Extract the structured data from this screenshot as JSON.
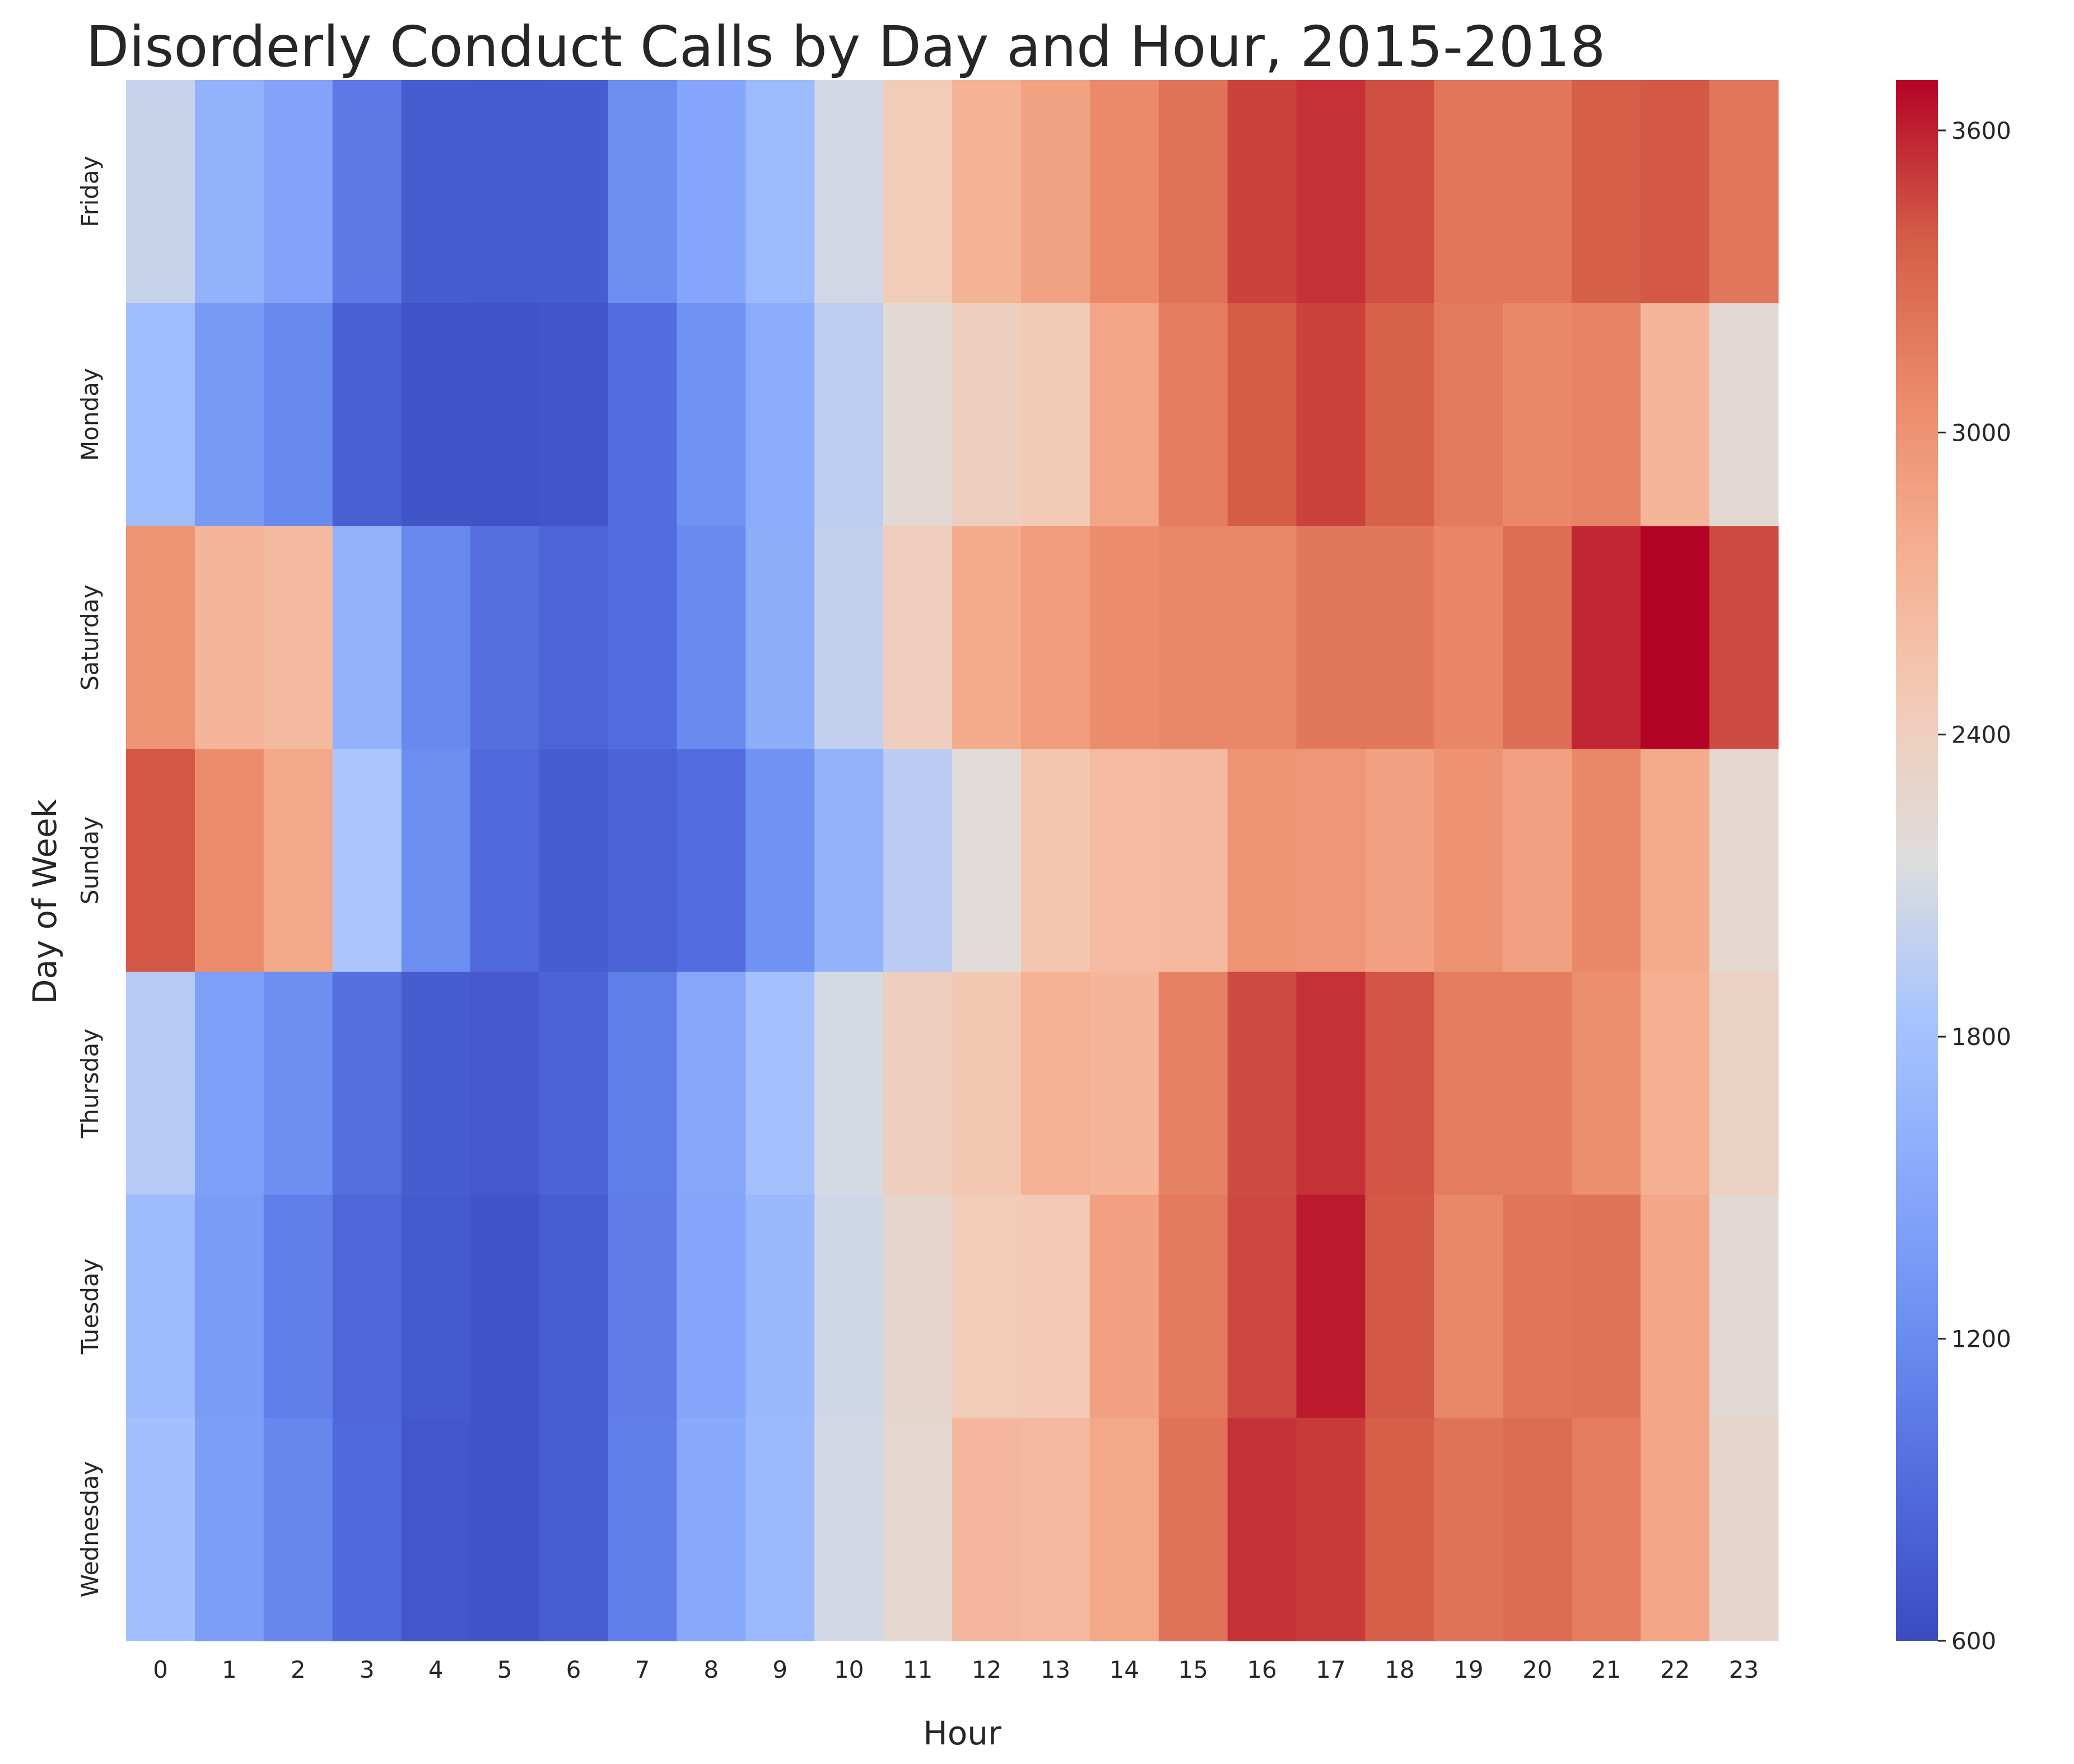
{
  "chart_data": {
    "type": "heatmap",
    "title": "Disorderly Conduct Calls by Day and Hour, 2015-2018",
    "xlabel": "Hour",
    "ylabel": "Day of Week",
    "x": [
      0,
      1,
      2,
      3,
      4,
      5,
      6,
      7,
      8,
      9,
      10,
      11,
      12,
      13,
      14,
      15,
      16,
      17,
      18,
      19,
      20,
      21,
      22,
      23
    ],
    "y": [
      "Friday",
      "Monday",
      "Saturday",
      "Sunday",
      "Thursday",
      "Tuesday",
      "Wednesday"
    ],
    "values": [
      [
        2020,
        1620,
        1450,
        1030,
        760,
        750,
        760,
        1220,
        1480,
        1720,
        2080,
        2440,
        2720,
        2870,
        3070,
        3230,
        3480,
        3540,
        3440,
        3210,
        3210,
        3370,
        3400,
        3210
      ],
      [
        1750,
        1360,
        1170,
        790,
        690,
        670,
        700,
        920,
        1260,
        1550,
        1970,
        2220,
        2400,
        2460,
        2840,
        3170,
        3380,
        3480,
        3350,
        3180,
        3080,
        3120,
        2700,
        2230
      ],
      [
        2990,
        2690,
        2640,
        1630,
        1170,
        940,
        840,
        920,
        1190,
        1560,
        1990,
        2420,
        2790,
        2920,
        3050,
        3090,
        3090,
        3200,
        3200,
        3100,
        3270,
        3580,
        3700,
        3450
      ],
      [
        3400,
        3050,
        2820,
        1870,
        1220,
        880,
        760,
        830,
        920,
        1260,
        1630,
        1950,
        2190,
        2520,
        2630,
        2650,
        2990,
        2970,
        2880,
        3000,
        2880,
        3080,
        2790,
        2260
      ],
      [
        1920,
        1410,
        1230,
        940,
        760,
        730,
        830,
        1070,
        1490,
        1800,
        2100,
        2400,
        2490,
        2740,
        2700,
        3130,
        3450,
        3540,
        3410,
        3160,
        3160,
        3030,
        2750,
        2360
      ],
      [
        1740,
        1370,
        1080,
        850,
        740,
        690,
        770,
        1060,
        1480,
        1700,
        2060,
        2280,
        2450,
        2470,
        2890,
        3180,
        3460,
        3620,
        3400,
        3090,
        3220,
        3230,
        2830,
        2230
      ],
      [
        1790,
        1400,
        1160,
        880,
        710,
        690,
        770,
        1080,
        1530,
        1710,
        2080,
        2260,
        2670,
        2650,
        2820,
        3230,
        3540,
        3510,
        3370,
        3230,
        3280,
        3170,
        2840,
        2280
      ]
    ],
    "colorbar": {
      "min": 600,
      "max": 3700,
      "ticks": [
        600,
        1200,
        1800,
        2400,
        3000,
        3600
      ],
      "colormap": "coolwarm"
    },
    "grid": false
  }
}
